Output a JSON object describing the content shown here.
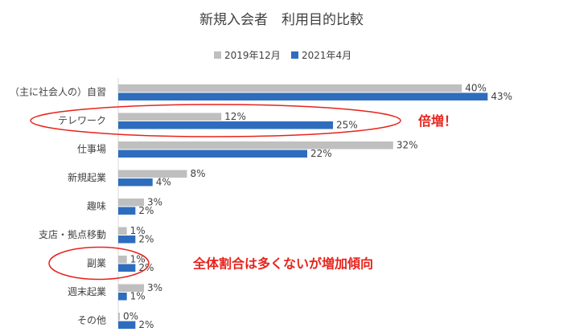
{
  "chart_data": {
    "type": "bar",
    "orientation": "horizontal",
    "title": "新規入会者　利用目的比較",
    "categories": [
      "（主に社会人の）自習",
      "テレワーク",
      "仕事場",
      "新規起業",
      "趣味",
      "支店・拠点移動",
      "副業",
      "週末起業",
      "その他"
    ],
    "series": [
      {
        "name": "2019年12月",
        "color": "#bfbfbf",
        "values": [
          40,
          12,
          32,
          8,
          3,
          1,
          1,
          3,
          0
        ]
      },
      {
        "name": "2021年4月",
        "color": "#2e6dbe",
        "values": [
          43,
          25,
          22,
          4,
          2,
          2,
          2,
          1,
          2
        ]
      }
    ],
    "value_suffix": "%",
    "xlim": [
      0,
      44
    ],
    "legend_position": "top",
    "grid": false,
    "annotations": [
      {
        "text": "倍増！",
        "category": "テレワーク"
      },
      {
        "text": "全体割合は多くないが増加傾向",
        "category": "副業"
      }
    ]
  },
  "accent_color": "#e8231c"
}
